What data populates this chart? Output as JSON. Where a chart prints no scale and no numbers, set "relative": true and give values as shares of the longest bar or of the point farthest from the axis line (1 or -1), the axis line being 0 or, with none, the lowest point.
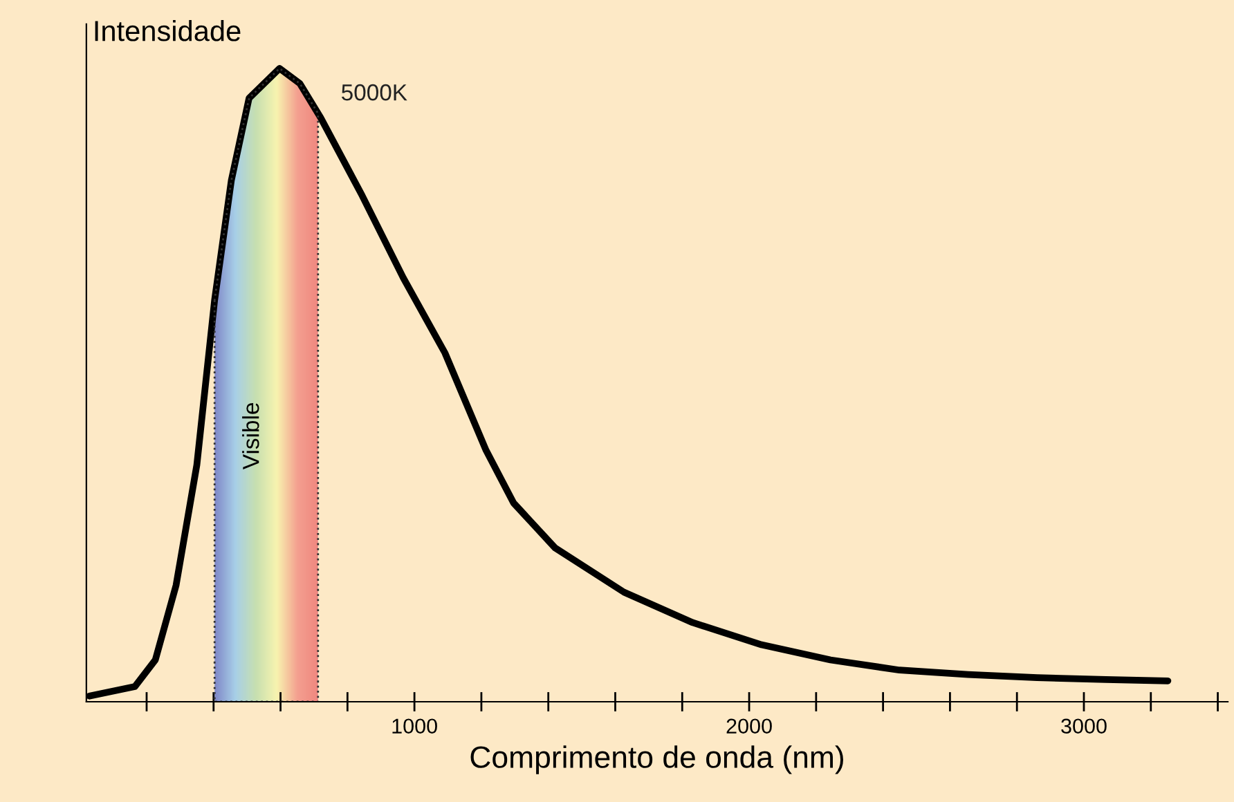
{
  "chart_data": {
    "type": "line",
    "relative": true,
    "ylabel": "Intensidade",
    "xlabel": "Comprimento de onda (nm)",
    "xlim": [
      20,
      3430
    ],
    "xticks": [
      {
        "value": 200,
        "label": null
      },
      {
        "value": 400,
        "label": null
      },
      {
        "value": 600,
        "label": null
      },
      {
        "value": 800,
        "label": null
      },
      1000,
      {
        "value": 1200,
        "label": null
      },
      {
        "value": 1400,
        "label": null
      },
      {
        "value": 1600,
        "label": null
      },
      {
        "value": 1800,
        "label": null
      },
      2000,
      {
        "value": 2200,
        "label": null
      },
      {
        "value": 2400,
        "label": null
      },
      {
        "value": 2600,
        "label": null
      },
      {
        "value": 2800,
        "label": null
      },
      3000,
      {
        "value": 3200,
        "label": null
      },
      {
        "value": 3400,
        "label": null
      }
    ],
    "grid": false,
    "legend": false,
    "marker": "none",
    "line_style": "solid",
    "bands": [
      {
        "axis": "x",
        "from": 403,
        "to": 712,
        "label": "Visible",
        "color": "#b8c8e0"
      }
    ],
    "series": [
      {
        "name": "5000K",
        "color": "#000000",
        "x": [
          29,
          165,
          226,
          288,
          350,
          403,
          453,
          506,
          597,
          658,
          720,
          844,
          967,
          1091,
          1214,
          1296,
          1420,
          1626,
          1831,
          2037,
          2243,
          2449,
          2654,
          2860,
          3066,
          3251
        ],
        "values": [
          0.009,
          0.024,
          0.066,
          0.184,
          0.374,
          0.634,
          0.823,
          0.953,
          1.0,
          0.976,
          0.922,
          0.799,
          0.669,
          0.551,
          0.397,
          0.314,
          0.243,
          0.173,
          0.125,
          0.09,
          0.066,
          0.05,
          0.043,
          0.038,
          0.035,
          0.033
        ]
      }
    ]
  }
}
